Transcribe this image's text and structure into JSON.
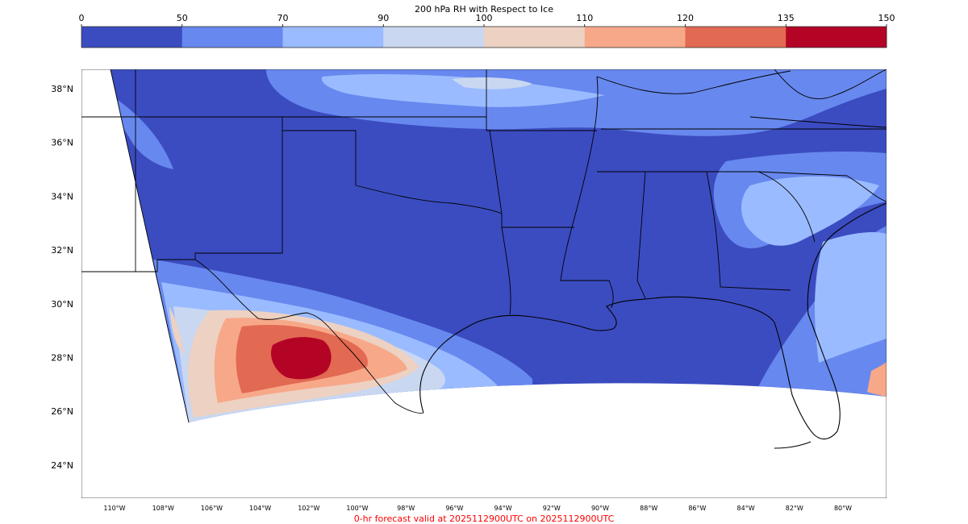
{
  "colorbar": {
    "title": "200 hPa RH with Respect to Ice",
    "ticks": [
      "0",
      "50",
      "70",
      "90",
      "100",
      "110",
      "120",
      "135",
      "150"
    ],
    "bins": [
      {
        "from": 0,
        "to": 50,
        "color": "#3b4cc0"
      },
      {
        "from": 50,
        "to": 70,
        "color": "#6788ee"
      },
      {
        "from": 70,
        "to": 90,
        "color": "#9abbff"
      },
      {
        "from": 90,
        "to": 100,
        "color": "#c9d7f0"
      },
      {
        "from": 100,
        "to": 110,
        "color": "#edd1c2"
      },
      {
        "from": 110,
        "to": 120,
        "color": "#f7a889"
      },
      {
        "from": 120,
        "to": 135,
        "color": "#e26952"
      },
      {
        "from": 135,
        "to": 150,
        "color": "#b40426"
      }
    ]
  },
  "map": {
    "lat_labels": [
      "38°N",
      "36°N",
      "34°N",
      "32°N",
      "30°N",
      "28°N",
      "26°N",
      "24°N"
    ],
    "lon_labels": [
      "110°W",
      "108°W",
      "106°W",
      "104°W",
      "102°W",
      "100°W",
      "98°W",
      "96°W",
      "94°W",
      "92°W",
      "90°W",
      "88°W",
      "86°W",
      "84°W",
      "82°W",
      "80°W"
    ]
  },
  "footer": {
    "text": "0-hr forecast valid at 2025112900UTC on 2025112900UTC",
    "color": "#ff0000"
  }
}
